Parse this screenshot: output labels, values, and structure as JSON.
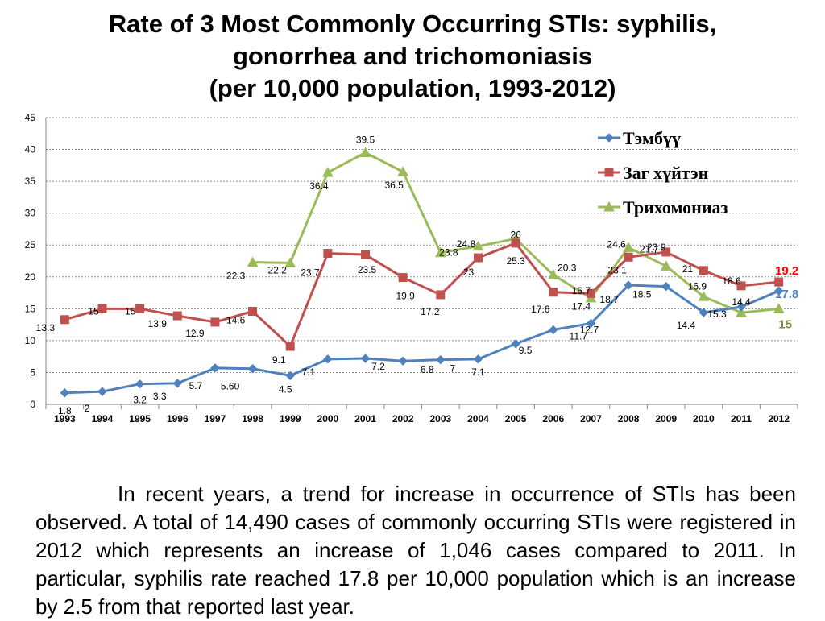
{
  "title": {
    "line1": "Rate of 3 Most Commonly Occurring STIs: syphilis,",
    "line2": "gonorrhea and trichomoniasis",
    "line3": "(per 10,000 population, 1993-2012)"
  },
  "chart_data": {
    "type": "line",
    "title": "Rate of 3 Most Commonly Occurring STIs: syphilis, gonorrhea and trichomoniasis (per 10,000 population, 1993-2012)",
    "xlabel": "",
    "ylabel": "",
    "ylim": [
      0,
      45
    ],
    "yticks": [
      "0",
      "5",
      "10",
      "15",
      "20",
      "25",
      "30",
      "35",
      "40",
      "45"
    ],
    "grid": true,
    "legend_position": "top-right",
    "categories": [
      "1993",
      "1994",
      "1995",
      "1996",
      "1997",
      "1998",
      "1999",
      "2000",
      "2001",
      "2002",
      "2003",
      "2004",
      "2005",
      "2006",
      "2007",
      "2008",
      "2009",
      "2010",
      "2011",
      "2012"
    ],
    "series": [
      {
        "name": "Тэмбүү",
        "color": "#4F81BD",
        "marker": "diamond",
        "values": [
          1.8,
          2,
          3.2,
          3.3,
          5.7,
          5.6,
          4.5,
          7.1,
          7.2,
          6.8,
          7,
          7.1,
          9.5,
          11.7,
          12.7,
          18.7,
          18.5,
          14.4,
          15.3,
          17.8
        ],
        "labels": [
          "1.8",
          "2",
          "3.2",
          "3.3",
          "5.7",
          "5.60",
          "4.5",
          "7.1",
          "7.2",
          "6.8",
          "7",
          "7.1",
          "9.5",
          "11.7",
          "12.7",
          "18.7",
          "18.5",
          "14.4",
          "15.3",
          "17.8"
        ]
      },
      {
        "name": "Заг хүйтэн",
        "color": "#C0504D",
        "marker": "square",
        "values": [
          13.3,
          15,
          15,
          13.9,
          12.9,
          14.6,
          9.1,
          23.7,
          23.5,
          19.9,
          17.2,
          23,
          25.3,
          17.6,
          17.4,
          23.1,
          23.9,
          21,
          18.6,
          19.2
        ],
        "labels": [
          "13.3",
          "15",
          "15",
          "13.9",
          "12.9",
          "14.6",
          "9.1",
          "23.7",
          "23.5",
          "19.9",
          "17.2",
          "23",
          "25.3",
          "17.6",
          "17.4",
          "23.1",
          "23.9",
          "21",
          "18.6",
          "19.2"
        ]
      },
      {
        "name": "Трихомониаз",
        "color": "#9BBB59",
        "marker": "triangle",
        "values": [
          null,
          null,
          null,
          null,
          null,
          22.3,
          22.2,
          36.4,
          39.5,
          36.5,
          23.8,
          24.8,
          26,
          20.3,
          16.7,
          24.6,
          21.7,
          16.9,
          14.4,
          15
        ],
        "labels": [
          null,
          null,
          null,
          null,
          null,
          "22.3",
          "22.2",
          "36.4",
          "39.5",
          "36.5",
          "23.8",
          "24.8",
          "26",
          "20.3",
          "16.7",
          "24.6",
          "21.7",
          "16.9",
          "14.4",
          "15"
        ]
      }
    ]
  },
  "body_text": "In recent years, a trend for increase in occurrence of STIs has been observed. A total of 14,490 cases of commonly occurring STIs were registered in 2012 which represents an increase of 1,046 cases compared to 2011. In particular, syphilis rate reached 17.8 per 10,000 population which is an increase by 2.5 from that reported last year."
}
